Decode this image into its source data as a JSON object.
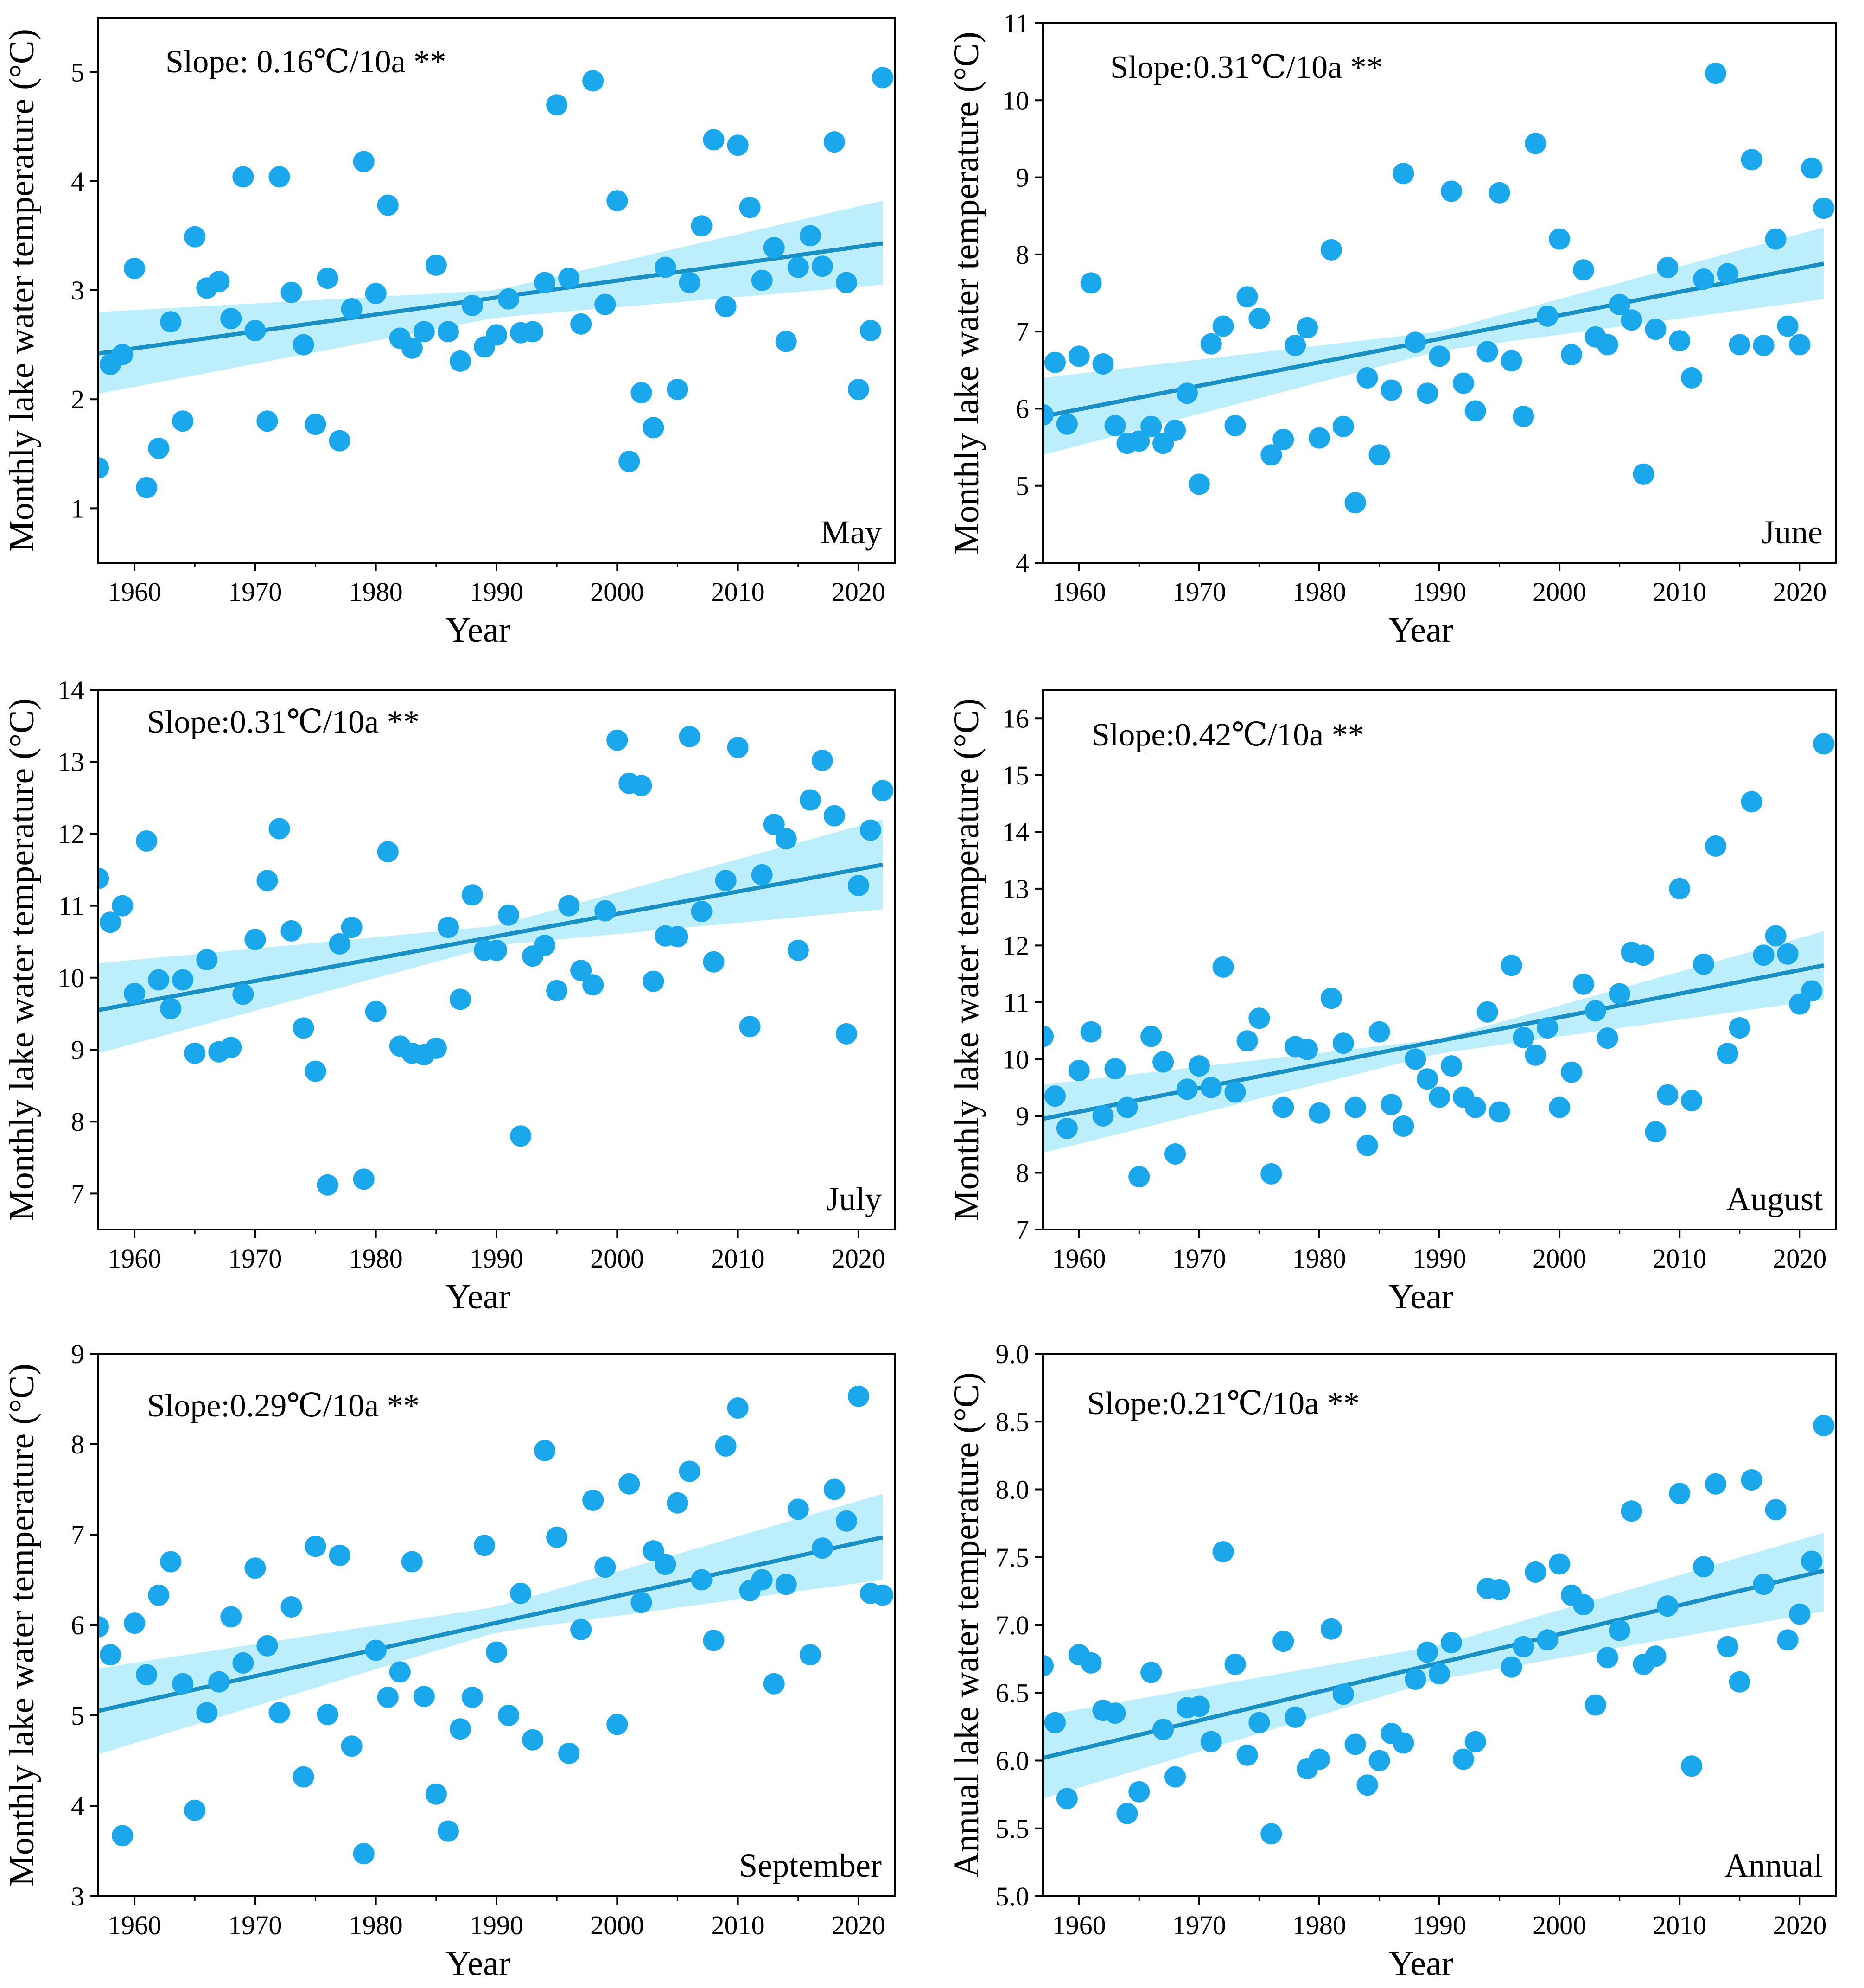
{
  "colors": {
    "point": "#1aa7ec",
    "trend": "#1a8fc4",
    "band": "#bdeefb",
    "axis": "#000000"
  },
  "chart_data": [
    {
      "type": "scatter",
      "panel_label": "May",
      "annotation": "Slope: 0.16℃/10a **",
      "xlabel": "Year",
      "ylabel": "Monthly lake water temperature (°C)",
      "xlim": [
        1957,
        2023
      ],
      "ylim": [
        0.5,
        5.5
      ],
      "xticks": [
        "1960",
        "1970",
        "1980",
        "1990",
        "2000",
        "2010",
        "2020"
      ],
      "yticks": [
        "1",
        "2",
        "3",
        "4",
        "5"
      ],
      "trend": {
        "x": [
          1957,
          2022
        ],
        "y": [
          2.42,
          3.43
        ]
      },
      "band": {
        "x": [
          1957,
          1990,
          2022
        ],
        "lower": [
          2.05,
          2.75,
          3.05
        ],
        "upper": [
          2.8,
          3.0,
          3.82
        ]
      },
      "x": [
        1957,
        1958,
        1959,
        1960,
        1961,
        1962,
        1963,
        1964,
        1965,
        1966,
        1967,
        1968,
        1969,
        1970,
        1971,
        1972,
        1973,
        1974,
        1975,
        1976,
        1977,
        1978,
        1979,
        1980,
        1981,
        1982,
        1983,
        1984,
        1985,
        1986,
        1987,
        1988,
        1989,
        1990,
        1991,
        1992,
        1993,
        1994,
        1995,
        1996,
        1997,
        1998,
        1999,
        2000,
        2001,
        2002,
        2003,
        2004,
        2005,
        2006,
        2007,
        2008,
        2009,
        2010,
        2011,
        2012,
        2013,
        2014,
        2015,
        2016,
        2017,
        2018,
        2019,
        2020,
        2021,
        2022
      ],
      "y": [
        1.37,
        2.32,
        2.41,
        3.2,
        1.19,
        1.55,
        2.71,
        1.8,
        3.49,
        3.02,
        3.08,
        2.74,
        4.04,
        2.63,
        1.8,
        4.04,
        2.98,
        2.5,
        1.77,
        3.11,
        1.62,
        2.83,
        4.18,
        2.97,
        3.78,
        2.56,
        2.47,
        2.62,
        3.23,
        2.62,
        2.35,
        2.86,
        2.48,
        2.59,
        2.92,
        2.61,
        2.62,
        3.07,
        4.7,
        3.11,
        2.69,
        4.92,
        2.87,
        3.82,
        1.43,
        2.06,
        1.74,
        3.21,
        2.09,
        3.07,
        3.59,
        4.38,
        2.85,
        4.33,
        3.76,
        3.09,
        3.39,
        2.53,
        3.21,
        3.5,
        3.22,
        4.36,
        3.07,
        2.09,
        2.63,
        4.95
      ]
    },
    {
      "type": "scatter",
      "panel_label": "June",
      "annotation": "Slope:0.31℃/10a **",
      "xlabel": "Year",
      "ylabel": "Monthly lake water temperature (°C)",
      "xlim": [
        1957,
        2023
      ],
      "ylim": [
        4,
        11
      ],
      "xticks": [
        "1960",
        "1970",
        "1980",
        "1990",
        "2000",
        "2010",
        "2020"
      ],
      "yticks": [
        "4",
        "5",
        "6",
        "7",
        "8",
        "9",
        "10",
        "11"
      ],
      "trend": {
        "x": [
          1957,
          2022
        ],
        "y": [
          5.9,
          7.88
        ]
      },
      "band": {
        "x": [
          1957,
          1990,
          2022
        ],
        "lower": [
          5.4,
          6.75,
          7.42
        ],
        "upper": [
          6.4,
          7.0,
          8.35
        ]
      },
      "x": [
        1957,
        1958,
        1959,
        1960,
        1961,
        1962,
        1963,
        1964,
        1965,
        1966,
        1967,
        1968,
        1969,
        1970,
        1971,
        1972,
        1973,
        1974,
        1975,
        1976,
        1977,
        1978,
        1979,
        1980,
        1981,
        1982,
        1983,
        1984,
        1985,
        1986,
        1987,
        1988,
        1989,
        1990,
        1991,
        1992,
        1993,
        1994,
        1995,
        1996,
        1997,
        1998,
        1999,
        2000,
        2001,
        2002,
        2003,
        2004,
        2005,
        2006,
        2007,
        2008,
        2009,
        2010,
        2011,
        2012,
        2013,
        2014,
        2015,
        2016,
        2017,
        2018,
        2019,
        2020,
        2021,
        2022
      ],
      "y": [
        5.92,
        6.6,
        5.8,
        6.68,
        7.63,
        6.58,
        5.78,
        5.55,
        5.58,
        5.77,
        5.55,
        5.72,
        6.2,
        5.02,
        6.84,
        7.07,
        5.78,
        7.45,
        7.17,
        5.4,
        5.6,
        6.82,
        7.05,
        5.62,
        8.06,
        5.77,
        4.78,
        6.4,
        5.4,
        6.24,
        9.05,
        6.86,
        6.2,
        6.68,
        8.82,
        6.33,
        5.97,
        6.74,
        8.8,
        6.62,
        5.9,
        9.44,
        7.2,
        8.2,
        6.7,
        7.8,
        6.93,
        6.83,
        7.35,
        7.15,
        5.15,
        7.03,
        7.83,
        6.88,
        6.4,
        7.68,
        10.35,
        7.75,
        6.83,
        9.23,
        6.82,
        8.2,
        7.07,
        6.83,
        9.12,
        8.6
      ]
    },
    {
      "type": "scatter",
      "panel_label": "July",
      "annotation": "Slope:0.31℃/10a **",
      "xlabel": "Year",
      "ylabel": "Monthly lake water temperature (°C)",
      "xlim": [
        1957,
        2023
      ],
      "ylim": [
        6.5,
        14
      ],
      "xticks": [
        "1960",
        "1970",
        "1980",
        "1990",
        "2000",
        "2010",
        "2020"
      ],
      "yticks": [
        "7",
        "8",
        "9",
        "10",
        "11",
        "12",
        "13",
        "14"
      ],
      "trend": {
        "x": [
          1957,
          2022
        ],
        "y": [
          9.55,
          11.57
        ]
      },
      "band": {
        "x": [
          1957,
          1990,
          2022
        ],
        "lower": [
          8.95,
          10.45,
          10.95
        ],
        "upper": [
          10.2,
          10.72,
          12.2
        ]
      },
      "x": [
        1957,
        1958,
        1959,
        1960,
        1961,
        1962,
        1963,
        1964,
        1965,
        1966,
        1967,
        1968,
        1969,
        1970,
        1971,
        1972,
        1973,
        1974,
        1975,
        1976,
        1977,
        1978,
        1979,
        1980,
        1981,
        1982,
        1983,
        1984,
        1985,
        1986,
        1987,
        1988,
        1989,
        1990,
        1991,
        1992,
        1993,
        1994,
        1995,
        1996,
        1997,
        1998,
        1999,
        2000,
        2001,
        2002,
        2003,
        2004,
        2005,
        2006,
        2007,
        2008,
        2009,
        2010,
        2011,
        2012,
        2013,
        2014,
        2015,
        2016,
        2017,
        2018,
        2019,
        2020,
        2021,
        2022
      ],
      "y": [
        11.38,
        10.77,
        11.0,
        9.78,
        11.9,
        9.97,
        9.57,
        9.97,
        8.95,
        10.25,
        8.97,
        9.03,
        9.77,
        10.53,
        11.35,
        12.07,
        10.65,
        9.3,
        8.7,
        7.12,
        10.47,
        10.7,
        7.2,
        9.53,
        11.75,
        9.05,
        8.95,
        8.93,
        9.02,
        10.7,
        9.7,
        11.15,
        10.38,
        10.38,
        10.87,
        7.8,
        10.3,
        10.45,
        9.82,
        11.0,
        10.1,
        9.9,
        10.93,
        13.3,
        12.7,
        12.67,
        9.95,
        10.58,
        10.57,
        13.35,
        10.92,
        10.22,
        11.35,
        13.2,
        9.32,
        11.43,
        12.13,
        11.93,
        10.38,
        12.47,
        13.02,
        12.25,
        9.22,
        11.28,
        12.05,
        12.6
      ]
    },
    {
      "type": "scatter",
      "panel_label": "August",
      "annotation": "Slope:0.42℃/10a **",
      "xlabel": "Year",
      "ylabel": "Monthly lake water temperature (°C)",
      "xlim": [
        1957,
        2023
      ],
      "ylim": [
        7,
        16.5
      ],
      "xticks": [
        "1960",
        "1970",
        "1980",
        "1990",
        "2000",
        "2010",
        "2020"
      ],
      "yticks": [
        "7",
        "8",
        "9",
        "10",
        "11",
        "12",
        "13",
        "14",
        "15",
        "16"
      ],
      "trend": {
        "x": [
          1957,
          2022
        ],
        "y": [
          8.95,
          11.65
        ]
      },
      "band": {
        "x": [
          1957,
          1990,
          2022
        ],
        "lower": [
          8.35,
          10.1,
          11.05
        ],
        "upper": [
          9.55,
          10.35,
          12.25
        ]
      },
      "x": [
        1957,
        1958,
        1959,
        1960,
        1961,
        1962,
        1963,
        1964,
        1965,
        1966,
        1967,
        1968,
        1969,
        1970,
        1971,
        1972,
        1973,
        1974,
        1975,
        1976,
        1977,
        1978,
        1979,
        1980,
        1981,
        1982,
        1983,
        1984,
        1985,
        1986,
        1987,
        1988,
        1989,
        1990,
        1991,
        1992,
        1993,
        1994,
        1995,
        1996,
        1997,
        1998,
        1999,
        2000,
        2001,
        2002,
        2003,
        2004,
        2005,
        2006,
        2007,
        2008,
        2009,
        2010,
        2011,
        2012,
        2013,
        2014,
        2015,
        2016,
        2017,
        2018,
        2019,
        2020,
        2021,
        2022
      ],
      "y": [
        10.4,
        9.35,
        8.78,
        9.8,
        10.48,
        9.0,
        9.83,
        9.15,
        7.93,
        10.4,
        9.95,
        8.33,
        9.47,
        9.88,
        9.5,
        11.62,
        9.42,
        10.32,
        10.72,
        7.98,
        9.15,
        10.22,
        10.17,
        9.05,
        11.07,
        10.28,
        9.15,
        8.48,
        10.48,
        9.2,
        8.82,
        10.0,
        9.65,
        9.33,
        9.88,
        9.33,
        9.15,
        10.83,
        9.07,
        11.65,
        10.38,
        10.07,
        10.55,
        9.15,
        9.77,
        11.32,
        10.85,
        10.37,
        11.15,
        11.88,
        11.83,
        8.72,
        9.37,
        13.0,
        9.27,
        11.67,
        13.75,
        10.1,
        10.55,
        14.53,
        11.83,
        12.17,
        11.85,
        10.97,
        11.2,
        15.55
      ]
    },
    {
      "type": "scatter",
      "panel_label": "September",
      "annotation": "Slope:0.29℃/10a **",
      "xlabel": "Year",
      "ylabel": "Monthly lake water temperature (°C)",
      "xlim": [
        1957,
        2023
      ],
      "ylim": [
        3,
        9
      ],
      "xticks": [
        "1960",
        "1970",
        "1980",
        "1990",
        "2000",
        "2010",
        "2020"
      ],
      "yticks": [
        "3",
        "4",
        "5",
        "6",
        "7",
        "8",
        "9"
      ],
      "trend": {
        "x": [
          1957,
          2022
        ],
        "y": [
          5.05,
          6.97
        ]
      },
      "band": {
        "x": [
          1957,
          1990,
          2022
        ],
        "lower": [
          4.57,
          5.92,
          6.5
        ],
        "upper": [
          5.52,
          6.2,
          7.45
        ]
      },
      "x": [
        1957,
        1958,
        1959,
        1960,
        1961,
        1962,
        1963,
        1964,
        1965,
        1966,
        1967,
        1968,
        1969,
        1970,
        1971,
        1972,
        1973,
        1974,
        1975,
        1976,
        1977,
        1978,
        1979,
        1980,
        1981,
        1982,
        1983,
        1984,
        1985,
        1986,
        1987,
        1988,
        1989,
        1990,
        1991,
        1992,
        1993,
        1994,
        1995,
        1996,
        1997,
        1998,
        1999,
        2000,
        2001,
        2002,
        2003,
        2004,
        2005,
        2006,
        2007,
        2008,
        2009,
        2010,
        2011,
        2012,
        2013,
        2014,
        2015,
        2016,
        2017,
        2018,
        2019,
        2020,
        2021,
        2022
      ],
      "y": [
        5.98,
        5.67,
        3.67,
        6.02,
        5.45,
        6.33,
        6.7,
        5.35,
        3.95,
        5.03,
        5.37,
        6.09,
        5.58,
        6.63,
        5.77,
        5.03,
        6.2,
        4.32,
        6.87,
        5.01,
        6.77,
        4.66,
        3.47,
        5.72,
        5.2,
        5.48,
        6.7,
        5.21,
        4.13,
        3.72,
        4.85,
        5.2,
        6.88,
        5.7,
        5.0,
        6.35,
        4.73,
        7.93,
        6.97,
        4.58,
        5.95,
        7.38,
        6.64,
        4.9,
        7.56,
        6.25,
        6.82,
        6.67,
        7.35,
        7.7,
        6.5,
        5.83,
        7.98,
        8.4,
        6.38,
        6.5,
        5.35,
        6.45,
        7.28,
        5.67,
        6.85,
        7.5,
        7.15,
        8.53,
        6.35,
        6.33
      ]
    },
    {
      "type": "scatter",
      "panel_label": "Annual",
      "annotation": "Slope:0.21℃/10a **",
      "xlabel": "Year",
      "ylabel": "Annual lake water temperature (°C)",
      "xlim": [
        1957,
        2023
      ],
      "ylim": [
        5.0,
        9.0
      ],
      "xticks": [
        "1960",
        "1970",
        "1980",
        "1990",
        "2000",
        "2010",
        "2020"
      ],
      "yticks": [
        "5.0",
        "5.5",
        "6.0",
        "6.5",
        "7.0",
        "7.5",
        "8.0",
        "8.5",
        "9.0"
      ],
      "trend": {
        "x": [
          1957,
          2022
        ],
        "y": [
          6.02,
          7.4
        ]
      },
      "band": {
        "x": [
          1957,
          1990,
          2022
        ],
        "lower": [
          5.72,
          6.6,
          7.1
        ],
        "upper": [
          6.33,
          6.85,
          7.68
        ]
      },
      "x": [
        1957,
        1958,
        1959,
        1960,
        1961,
        1962,
        1963,
        1964,
        1965,
        1966,
        1967,
        1968,
        1969,
        1970,
        1971,
        1972,
        1973,
        1974,
        1975,
        1976,
        1977,
        1978,
        1979,
        1980,
        1981,
        1982,
        1983,
        1984,
        1985,
        1986,
        1987,
        1988,
        1989,
        1990,
        1991,
        1992,
        1993,
        1994,
        1995,
        1996,
        1997,
        1998,
        1999,
        2000,
        2001,
        2002,
        2003,
        2004,
        2005,
        2006,
        2007,
        2008,
        2009,
        2010,
        2011,
        2012,
        2013,
        2014,
        2015,
        2016,
        2017,
        2018,
        2019,
        2020,
        2021,
        2022
      ],
      "y": [
        6.7,
        6.28,
        5.72,
        6.78,
        6.72,
        6.37,
        6.35,
        5.61,
        5.77,
        6.65,
        6.23,
        5.88,
        6.39,
        6.4,
        6.14,
        7.54,
        6.71,
        6.04,
        6.28,
        5.46,
        6.88,
        6.32,
        5.94,
        6.01,
        6.97,
        6.49,
        6.12,
        5.82,
        6.0,
        6.2,
        6.13,
        6.6,
        6.8,
        6.64,
        6.87,
        6.01,
        6.14,
        7.27,
        7.26,
        6.69,
        6.84,
        7.39,
        6.89,
        7.45,
        7.22,
        7.15,
        6.41,
        6.76,
        6.96,
        7.84,
        6.71,
        6.77,
        7.14,
        7.97,
        5.96,
        7.43,
        8.04,
        6.84,
        6.58,
        8.07,
        7.3,
        7.85,
        6.89,
        7.08,
        7.47,
        8.47
      ]
    }
  ]
}
